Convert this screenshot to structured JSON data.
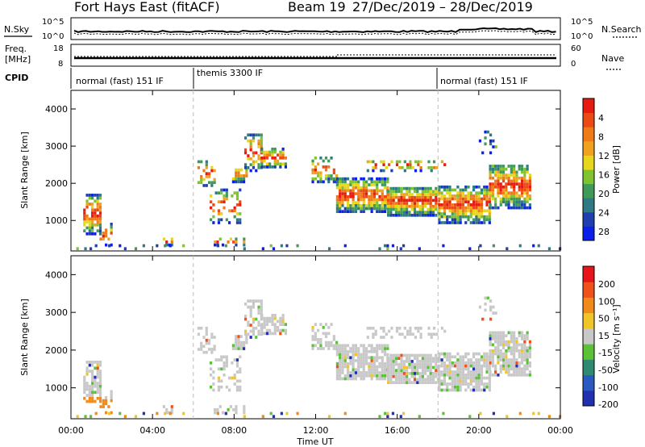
{
  "header": {
    "site": "Fort Hays East (fitACF)",
    "beam": "Beam 19",
    "date_range": "27/Dec/2019 – 28/Dec/2019"
  },
  "top_panels": {
    "nsky_label": "N.Sky",
    "nsearch_label": "N.Search",
    "noise_ticks": [
      "10^5",
      "10^0"
    ],
    "freq_label_1": "Freq.",
    "freq_label_2": "[MHz]",
    "freq_ticks": [
      "18",
      "8"
    ],
    "nave_label": "Nave",
    "nave_ticks": [
      "60",
      "0"
    ],
    "cpid_label": "CPID",
    "cpid_segments": [
      {
        "label": "normal (fast) 151 IF",
        "start_hour": 0
      },
      {
        "label": "themis 3300 IF",
        "start_hour": 6
      },
      {
        "label": "normal (fast) 151 IF",
        "start_hour": 18
      }
    ]
  },
  "chart_data": [
    {
      "type": "heatmap",
      "name": "power",
      "ylabel": "Slant Range [km]",
      "yticks": [
        1000,
        2000,
        3000,
        4000
      ],
      "ylim": [
        180,
        4500
      ],
      "xlim_hours": [
        0,
        24
      ],
      "colorbar": {
        "label": "Power [dB]",
        "ticks": [
          "4",
          "8",
          "12",
          "16",
          "20",
          "24",
          "28"
        ],
        "colors": [
          "#0a1fe8",
          "#1f3fb0",
          "#2f7a82",
          "#3f9a5a",
          "#7fc430",
          "#e6d71a",
          "#f0a21e",
          "#f07a18",
          "#ec4a14",
          "#e61a10"
        ]
      }
    },
    {
      "type": "heatmap",
      "name": "velocity",
      "ylabel": "Slant Range [km]",
      "yticks": [
        1000,
        2000,
        3000,
        4000
      ],
      "ylim": [
        180,
        4500
      ],
      "xlim_hours": [
        0,
        24
      ],
      "xlabel": "Time UT",
      "xticks": [
        "00:00",
        "04:00",
        "08:00",
        "12:00",
        "16:00",
        "20:00",
        "00:00"
      ],
      "colorbar": {
        "label": "Velocity [m s⁻¹]",
        "ticks": [
          "200",
          "100",
          "50",
          "15",
          "-15",
          "-50",
          "-100",
          "-200"
        ],
        "colors": [
          "#2030b0",
          "#2a5ac0",
          "#2e8a70",
          "#5bc238",
          "#c8c8c8",
          "#f0c52a",
          "#f08a1a",
          "#f0501a",
          "#e8141a"
        ]
      }
    }
  ]
}
